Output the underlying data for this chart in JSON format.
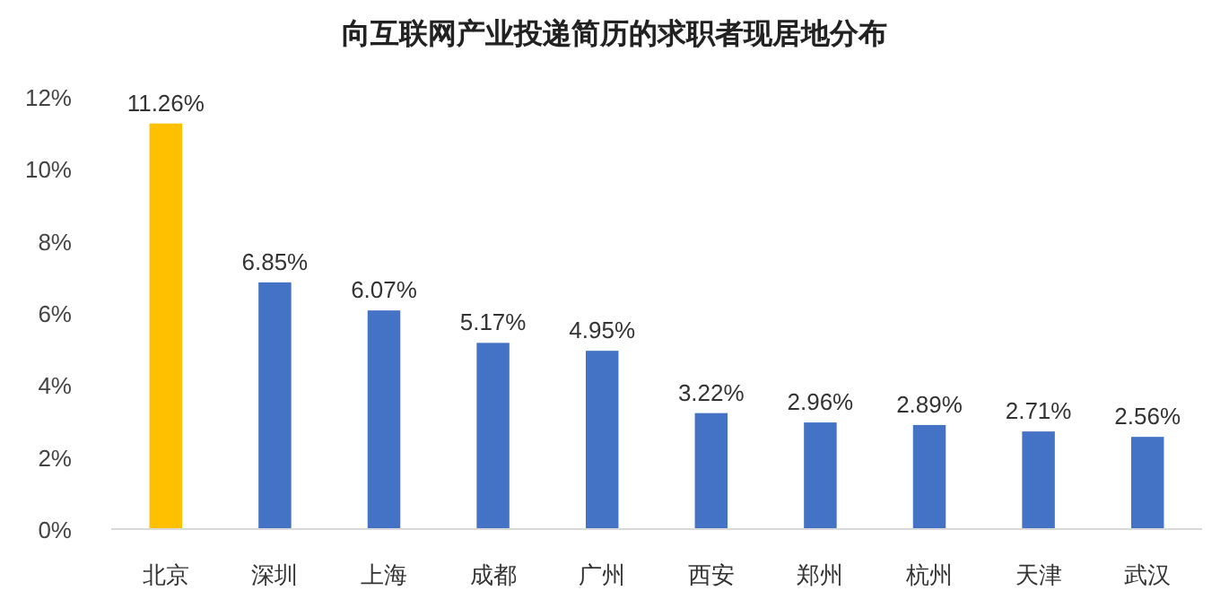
{
  "chart_data": {
    "type": "bar",
    "title": "向互联网产业投递简历的求职者现居地分布",
    "categories": [
      "北京",
      "深圳",
      "上海",
      "成都",
      "广州",
      "西安",
      "郑州",
      "杭州",
      "天津",
      "武汉"
    ],
    "values": [
      11.26,
      6.85,
      6.07,
      5.17,
      4.95,
      3.22,
      2.96,
      2.89,
      2.71,
      2.56
    ],
    "value_labels": [
      "11.26%",
      "6.85%",
      "6.07%",
      "5.17%",
      "4.95%",
      "3.22%",
      "2.96%",
      "2.89%",
      "2.71%",
      "2.56%"
    ],
    "colors": [
      "#ffc000",
      "#4472c4",
      "#4472c4",
      "#4472c4",
      "#4472c4",
      "#4472c4",
      "#4472c4",
      "#4472c4",
      "#4472c4",
      "#4472c4"
    ],
    "ylim": [
      0,
      12
    ],
    "yticks": [
      {
        "value": 0,
        "label": "0%"
      },
      {
        "value": 2,
        "label": "2%"
      },
      {
        "value": 4,
        "label": "4%"
      },
      {
        "value": 6,
        "label": "6%"
      },
      {
        "value": 8,
        "label": "8%"
      },
      {
        "value": 10,
        "label": "10%"
      },
      {
        "value": 12,
        "label": "12%"
      }
    ]
  }
}
